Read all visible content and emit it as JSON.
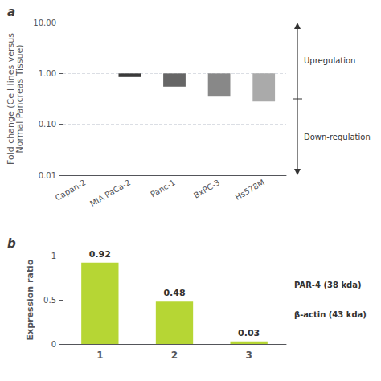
{
  "chart_data": [
    {
      "type": "bar",
      "title": "a",
      "categories": [
        "Capan-2",
        "MIA PaCa-2",
        "Panc-1",
        "BxPC-3",
        "Hs578M"
      ],
      "values": [
        1.0,
        0.85,
        0.55,
        0.35,
        0.28
      ],
      "colors": [
        "#3a3a3a",
        "#3a3a3a",
        "#666666",
        "#888888",
        "#aaaaaa"
      ],
      "ylabel": "Fold change (Cell lines versus\nNormal Pancreas Tissue)",
      "log": "y",
      "ylim": [
        0.01,
        10.0
      ],
      "yticks": [
        0.01,
        {
          "value": 0.1,
          "label": "0.10"
        },
        {
          "value": 1,
          "label": "1.00"
        },
        {
          "value": 10,
          "label": "10.00"
        }
      ],
      "grid": true,
      "annotations": [
        "Upregulation",
        "Down-regulation"
      ]
    },
    {
      "type": "bar",
      "title": "b",
      "categories": [
        "1",
        "2",
        "3"
      ],
      "values": [
        0.92,
        0.48,
        0.03
      ],
      "ylabel": "Expression ratio",
      "ylim": [
        0,
        1
      ],
      "yticks": [
        0,
        0.5,
        1
      ],
      "data_labels": true,
      "annotations": [
        "PAR-4 (38 kda)",
        "β-actin (43 kda)"
      ]
    }
  ]
}
